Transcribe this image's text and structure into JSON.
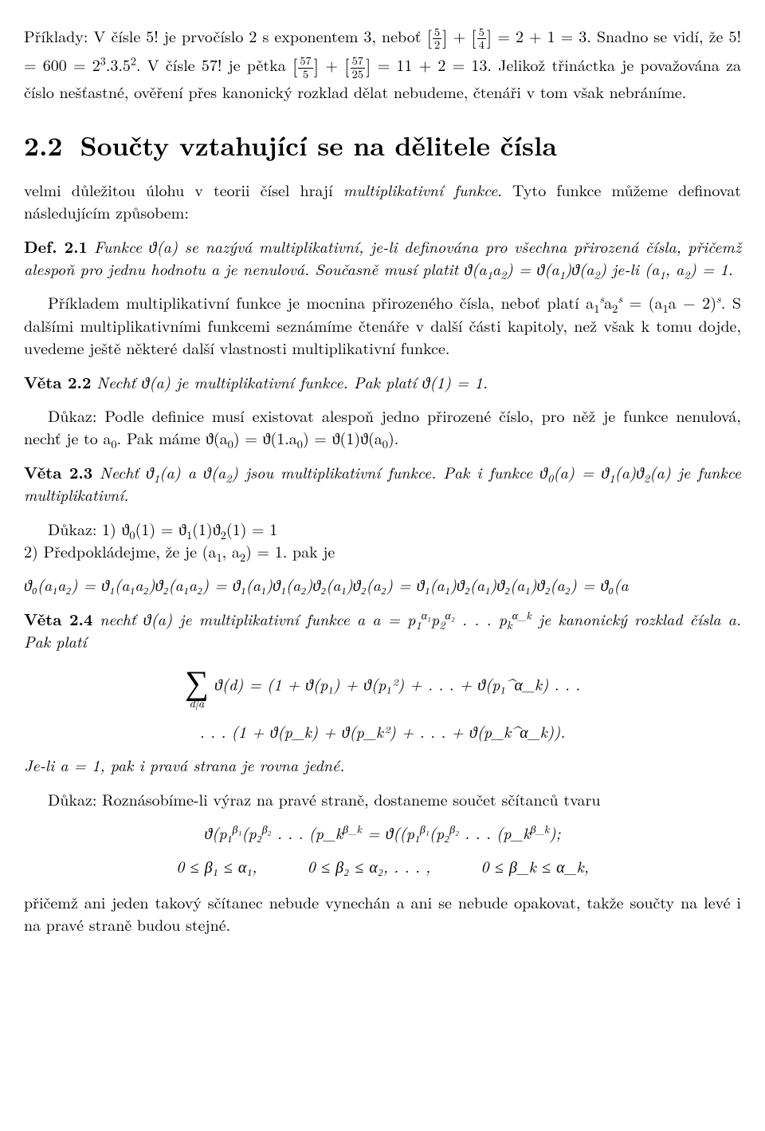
{
  "p1a": "Příklady: V čísle 5! je prvočíslo 2 s exponentem 3, neboť ",
  "p1b": " = 2 + 1 = 3.",
  "p2a": "Snadno se vidí, že 5! = 600 = 2",
  "p2b": ".3.5",
  "p2c": ". V čísle 57! je pětka ",
  "p2d": " = 11 + 2 = 13.",
  "p3": "Jelikož třináctka je považována za číslo nešťastné, ověření přes kanonický rozklad dělat nebudeme, čtenáři v tom však nebráníme.",
  "sec_num": "2.2",
  "sec_title": "Součty vztahující se na dělitele čísla",
  "p4a": "velmi důležitou úlohu v teorii čísel hrají ",
  "p4b": "multiplikativní funkce",
  "p4c": ". Tyto funkce můžeme definovat následujícím způsobem:",
  "def_lbl": "Def. 2.1",
  "def_a": " Funkce ϑ(a) se nazývá multiplikativní, je-li definována pro všechna přirozená čísla, přičemž alespoň pro jednu hodnotu a je nenulová. Současně musí platit ϑ(a",
  "def_b": ") = ϑ(a",
  "def_c": ")ϑ(a",
  "def_d": ")  je-li (a",
  "def_e": ", a",
  "def_f": ") = 1.",
  "p5a": "Příkladem multiplikativní funkce je mocnina přirozeného čísla, neboť platí a",
  "p5b": " = (a",
  "p5c": "a − 2)",
  "p5d": ". S dalšími multiplikativními funkcemi seznámíme čtenáře v další části ka­pitoly, než však k tomu dojde, uvedeme ještě některé další vlastnosti multiplikativní funkce.",
  "v22_lbl": "Věta 2.2",
  "v22_txt": " Nechť ϑ(a) je multiplikativní funkce. Pak platí ϑ(1) = 1.",
  "p6a": "Důkaz: Podle definice musí existovat alespoň jedno přirozené číslo, pro něž je funkce nenulová, nechť je to a",
  "p6b": ". Pak máme ϑ(a",
  "p6c": ") = ϑ(1.a",
  "p6d": ") = ϑ(1)ϑ(a",
  "p6e": ").",
  "v23_lbl": "Věta 2.3",
  "v23_a": " Nechť ϑ",
  "v23_b": "(a) a ϑ(a",
  "v23_c": ") jsou multiplikativní funkce. Pak i funkce ϑ",
  "v23_d": "(a) = ϑ",
  "v23_e": "(a)ϑ",
  "v23_f": "(a) je funkce multiplikativní.",
  "p7a": "Důkaz: 1) ϑ",
  "p7b": "(1) = ϑ",
  "p7c": "(1)ϑ",
  "p7d": "(1) = 1",
  "p8a": "2) Předpokládejme, že je (a",
  "p8b": ", a",
  "p8c": ") = 1. pak je",
  "longeq": "ϑ₀(a₁a₂) = ϑ₁(a₁a₂)ϑ₂(a₁a₂) = ϑ₁(a₁)ϑ₁(a₂)ϑ₂(a₁)ϑ₂(a₂) = ϑ₁(a₁)ϑ₂(a₁)ϑ₂(a₁)ϑ₂(a₂) = ϑ₀(a",
  "v24_lbl": "Věta 2.4",
  "v24_a": " nechť ϑ(a) je multiplikativní funkce a a = p",
  "v24_b": " . . . p",
  "v24_c": " je kanonický rozklad čísla a. Pak platí",
  "disp1": " ϑ(d) = (1 + ϑ(p₁) + ϑ(p₁²) + . . . + ϑ(p₁^α_k) . . .",
  "disp2": ". . . (1 + ϑ(p_k) + ϑ(p_k²) + . . . + ϑ(p_k^α_k)).",
  "p9": "Je-li a = 1, pak i pravá strana je rovna jedné.",
  "p10": "Důkaz: Roznásobíme-li výraz na pravé straně, dostaneme součet sčítanců tvaru",
  "disp3a": "ϑ(p₁",
  "disp3b": "(p₂",
  "disp3c": " . . . (p_k",
  "disp3d": " = ϑ((p₁",
  "disp3e": "(p₂",
  "disp3f": " . . . (p_k",
  "disp3g": ");",
  "ineq1": "0 ≤ β₁ ≤ α₁,",
  "ineq2": "0 ≤ β₂ ≤ α₂, . . . ,",
  "ineq3": "0 ≤ β_k ≤ α_k,",
  "p11": "přičemž ani jeden takový sčítanec nebude vynechán a ani se nebude opakovat, takže součty na levé i na pravé straně budou stejné."
}
